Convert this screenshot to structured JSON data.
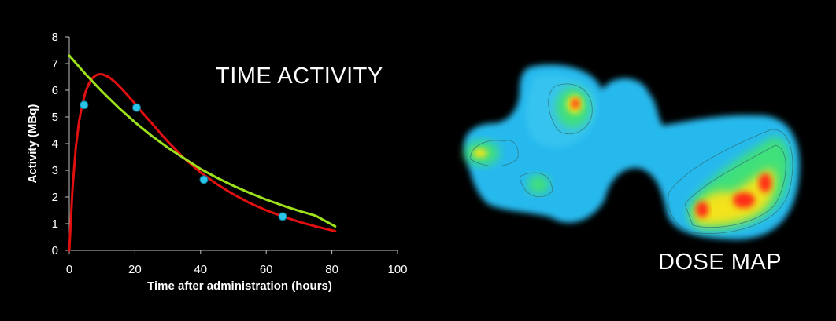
{
  "labels": {
    "time_activity": "TIME ACTIVITY",
    "dose_map": "DOSE MAP"
  },
  "chart_data": {
    "type": "line",
    "title": "",
    "xlabel": "Time after administration (hours)",
    "ylabel": "Activity (MBq)",
    "xlim": [
      0,
      100
    ],
    "ylim": [
      0,
      8
    ],
    "xticks": [
      0,
      20,
      40,
      60,
      80,
      100
    ],
    "yticks": [
      0,
      1,
      2,
      3,
      4,
      5,
      6,
      7,
      8
    ],
    "grid": false,
    "legend": "none",
    "series": [
      {
        "kind": "points",
        "color": "#29c5e6",
        "x": [
          4.5,
          20.5,
          41,
          65
        ],
        "y": [
          5.45,
          5.35,
          2.65,
          1.27
        ]
      },
      {
        "kind": "line",
        "color": "#e01010",
        "x": [
          0,
          1,
          2,
          3,
          4,
          5,
          6,
          7,
          8,
          9,
          10,
          12,
          14,
          16,
          18,
          20,
          22,
          25,
          28,
          30,
          35,
          40,
          45,
          50,
          55,
          60,
          65,
          70,
          75,
          81
        ],
        "y": [
          0,
          2.35,
          3.85,
          4.85,
          5.5,
          5.95,
          6.25,
          6.45,
          6.55,
          6.6,
          6.6,
          6.5,
          6.3,
          6.05,
          5.78,
          5.5,
          5.2,
          4.78,
          4.35,
          4.08,
          3.45,
          2.92,
          2.48,
          2.1,
          1.77,
          1.5,
          1.27,
          1.07,
          0.9,
          0.72
        ]
      },
      {
        "kind": "line",
        "color": "#9de01c",
        "x": [
          0,
          5,
          10,
          15,
          20,
          25,
          30,
          35,
          40,
          45,
          50,
          55,
          60,
          65,
          70,
          75,
          81
        ],
        "y": [
          7.3,
          6.6,
          5.95,
          5.35,
          4.8,
          4.3,
          3.85,
          3.45,
          3.05,
          2.72,
          2.42,
          2.15,
          1.9,
          1.68,
          1.48,
          1.3,
          0.9
        ]
      }
    ]
  }
}
